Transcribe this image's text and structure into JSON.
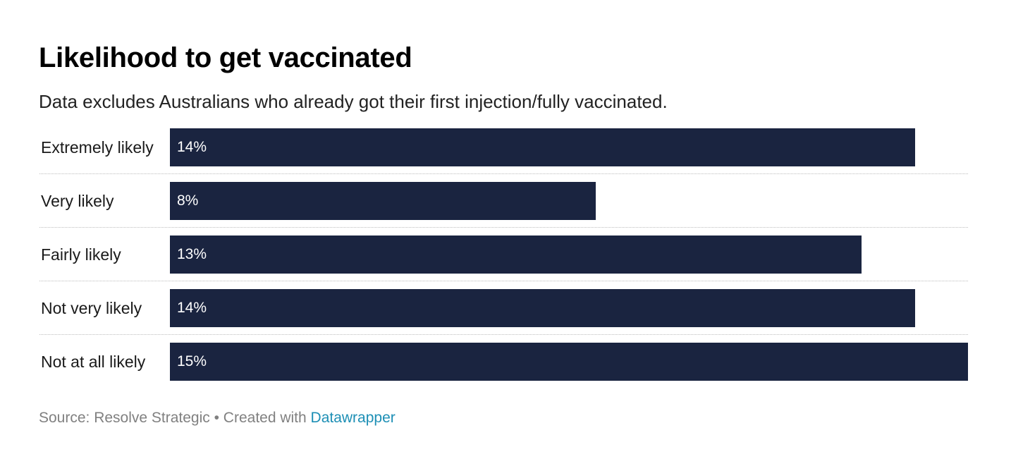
{
  "chart_data": {
    "type": "bar",
    "orientation": "horizontal",
    "title": "Likelihood to get vaccinated",
    "subtitle": "Data excludes Australians who already got their first injection/fully vaccinated.",
    "categories": [
      "Extremely likely",
      "Very likely",
      "Fairly likely",
      "Not very likely",
      "Not at all likely"
    ],
    "values": [
      14,
      8,
      13,
      14,
      15
    ],
    "value_labels": [
      "14%",
      "8%",
      "13%",
      "14%",
      "15%"
    ],
    "unit": "%",
    "xlim": [
      0,
      15
    ],
    "grid": false,
    "legend": "none",
    "bar_color": "#1a2440"
  },
  "footer": {
    "source_text": "Source: Resolve Strategic • Created with ",
    "link_text": "Datawrapper",
    "link_color": "#1d8fb5"
  }
}
